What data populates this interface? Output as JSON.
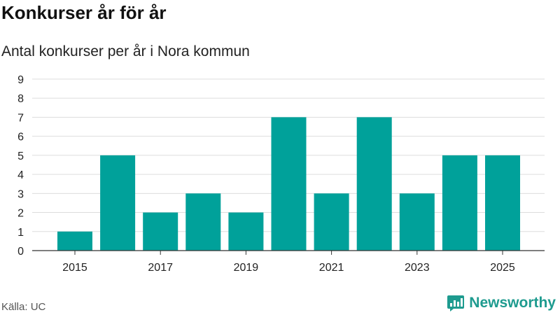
{
  "title": "Konkurser år för år",
  "subtitle": "Antal konkurser per år i Nora kommun",
  "source": "Källa: UC",
  "brand": {
    "name": "Newsworthy",
    "icon": "newsworthy-logo-icon"
  },
  "colors": {
    "bar": "#00a19a",
    "grid": "#dddddd",
    "axis": "#333333",
    "brand": "#1e9b8f"
  },
  "chart_data": {
    "type": "bar",
    "categories": [
      "2015",
      "2016",
      "2017",
      "2018",
      "2019",
      "2020",
      "2021",
      "2022",
      "2023",
      "2024",
      "2025"
    ],
    "values": [
      1,
      5,
      2,
      3,
      2,
      7,
      3,
      7,
      3,
      5,
      5
    ],
    "x_tick_labels": [
      "2015",
      "2017",
      "2019",
      "2021",
      "2023",
      "2025"
    ],
    "y_ticks": [
      0,
      1,
      2,
      3,
      4,
      5,
      6,
      7,
      8,
      9
    ],
    "ylim": [
      0,
      9
    ],
    "grid": true,
    "legend": "none"
  }
}
